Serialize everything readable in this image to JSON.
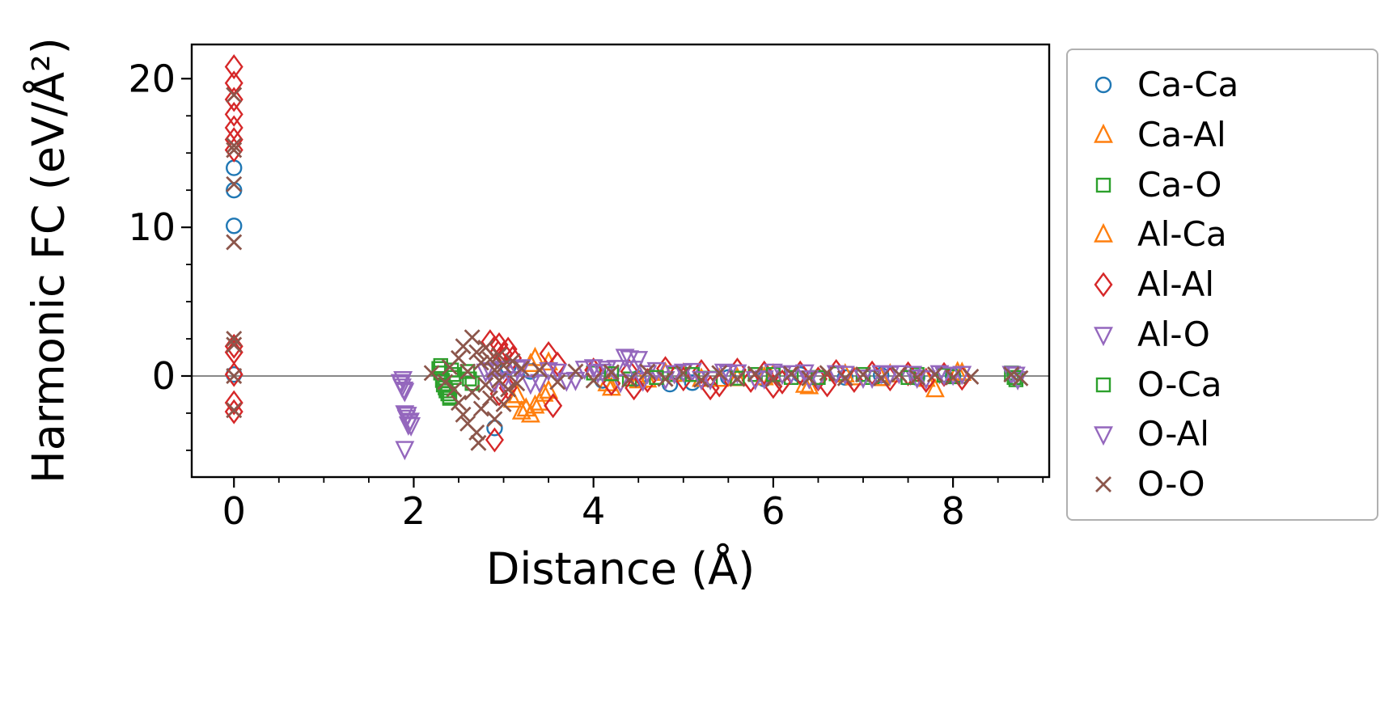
{
  "chart_data": {
    "type": "scatter",
    "title": "",
    "xlabel": "Distance (Å)",
    "ylabel": "Harmonic FC (eV/Å²)",
    "xlim": [
      -0.47,
      9.07
    ],
    "ylim": [
      -6.8,
      22.3
    ],
    "xticks": [
      0,
      2,
      4,
      6,
      8
    ],
    "yticks": [
      0,
      10,
      20
    ],
    "x_minor_step": 0.5,
    "y_minor_step": 2.5,
    "grid": false,
    "zero_line": {
      "y": 0,
      "color": "#888888"
    },
    "legend_position": "outside-right-top",
    "legend_border_color": "#b0b0b0",
    "series": [
      {
        "name": "Ca-Ca",
        "marker": "circle",
        "color": "#1f77b4",
        "size": 9,
        "points": [
          [
            0,
            14.0
          ],
          [
            0,
            12.5
          ],
          [
            0,
            10.1
          ],
          [
            0,
            0.1
          ],
          [
            2.9,
            -3.5
          ],
          [
            3.05,
            0.6
          ],
          [
            3.3,
            0.3
          ],
          [
            4.1,
            -0.3
          ],
          [
            4.5,
            -0.15
          ],
          [
            4.85,
            -0.55
          ],
          [
            5.1,
            -0.45
          ],
          [
            5.5,
            -0.1
          ],
          [
            5.9,
            -0.2
          ],
          [
            6.3,
            0.1
          ],
          [
            6.8,
            -0.1
          ],
          [
            7.2,
            0.05
          ],
          [
            7.6,
            -0.1
          ],
          [
            8.0,
            0.0
          ]
        ]
      },
      {
        "name": "Ca-Al",
        "marker": "triangle-up",
        "color": "#ff7f0e",
        "size": 10,
        "points": [
          [
            3.15,
            -1.3
          ],
          [
            3.25,
            -2.2
          ],
          [
            3.3,
            -2.6
          ],
          [
            3.4,
            -1.8
          ],
          [
            3.45,
            -1.2
          ],
          [
            3.35,
            1.2
          ],
          [
            3.5,
            0.9
          ],
          [
            4.2,
            -0.8
          ],
          [
            4.5,
            -0.3
          ],
          [
            4.8,
            0.2
          ],
          [
            5.2,
            -0.2
          ],
          [
            5.6,
            -0.15
          ],
          [
            6.0,
            0.1
          ],
          [
            6.4,
            -0.7
          ],
          [
            6.9,
            -0.1
          ],
          [
            7.3,
            0.1
          ],
          [
            7.7,
            -0.2
          ],
          [
            8.05,
            0.25
          ]
        ]
      },
      {
        "name": "Ca-O",
        "marker": "square",
        "color": "#2ca02c",
        "size": 8,
        "points": [
          [
            2.3,
            0.7
          ],
          [
            2.3,
            0.2
          ],
          [
            2.32,
            -0.3
          ],
          [
            2.35,
            -0.8
          ],
          [
            2.38,
            -1.2
          ],
          [
            2.4,
            -1.5
          ],
          [
            2.42,
            0.4
          ],
          [
            2.45,
            -0.1
          ],
          [
            2.6,
            0.3
          ],
          [
            2.65,
            -0.5
          ],
          [
            4.0,
            0.2
          ],
          [
            4.4,
            -0.2
          ],
          [
            4.9,
            0.1
          ],
          [
            5.3,
            -0.15
          ],
          [
            5.8,
            0.1
          ],
          [
            6.2,
            -0.1
          ],
          [
            6.7,
            0.15
          ],
          [
            7.1,
            -0.1
          ],
          [
            7.6,
            0.1
          ],
          [
            8.0,
            -0.05
          ],
          [
            8.65,
            0.2
          ],
          [
            8.7,
            -0.25
          ]
        ]
      },
      {
        "name": "Al-Ca",
        "marker": "triangle-up",
        "color": "#ff7f0e",
        "size": 10,
        "points": [
          [
            3.1,
            -1.6
          ],
          [
            3.2,
            -2.4
          ],
          [
            3.35,
            -2.0
          ],
          [
            3.5,
            -1.0
          ],
          [
            3.3,
            0.8
          ],
          [
            4.15,
            -0.5
          ],
          [
            4.6,
            -0.25
          ],
          [
            5.0,
            0.15
          ],
          [
            5.4,
            -0.2
          ],
          [
            5.9,
            -0.1
          ],
          [
            6.35,
            -0.6
          ],
          [
            6.8,
            0.1
          ],
          [
            7.2,
            -0.15
          ],
          [
            7.8,
            -0.9
          ],
          [
            8.1,
            0.2
          ]
        ]
      },
      {
        "name": "Al-Al",
        "marker": "diamond",
        "color": "#d62728",
        "size": 10,
        "points": [
          [
            0,
            20.8
          ],
          [
            0,
            19.7
          ],
          [
            0,
            18.6
          ],
          [
            0,
            17.6
          ],
          [
            0,
            16.7
          ],
          [
            0,
            15.9
          ],
          [
            0,
            15.2
          ],
          [
            0,
            2.0
          ],
          [
            0,
            1.6
          ],
          [
            0,
            0.1
          ],
          [
            0,
            -1.8
          ],
          [
            0,
            -2.4
          ],
          [
            2.85,
            2.3
          ],
          [
            2.9,
            1.9
          ],
          [
            2.95,
            2.1
          ],
          [
            3.0,
            1.5
          ],
          [
            3.05,
            1.8
          ],
          [
            3.1,
            1.2
          ],
          [
            2.9,
            -4.3
          ],
          [
            2.95,
            -1.2
          ],
          [
            3.05,
            -0.8
          ],
          [
            3.5,
            1.5
          ],
          [
            3.55,
            -2.0
          ],
          [
            3.6,
            0.8
          ],
          [
            4.0,
            0.4
          ],
          [
            4.2,
            -0.5
          ],
          [
            4.4,
            0.3
          ],
          [
            4.45,
            -0.8
          ],
          [
            4.6,
            -0.3
          ],
          [
            4.8,
            0.5
          ],
          [
            5.0,
            -0.2
          ],
          [
            5.2,
            0.3
          ],
          [
            5.3,
            -0.8
          ],
          [
            5.4,
            -0.6
          ],
          [
            5.6,
            0.4
          ],
          [
            5.75,
            -0.3
          ],
          [
            5.9,
            0.2
          ],
          [
            6.0,
            -0.7
          ],
          [
            6.1,
            -0.4
          ],
          [
            6.3,
            0.2
          ],
          [
            6.5,
            -0.2
          ],
          [
            6.6,
            -0.6
          ],
          [
            6.7,
            0.3
          ],
          [
            6.9,
            -0.3
          ],
          [
            7.1,
            0.2
          ],
          [
            7.3,
            -0.2
          ],
          [
            7.5,
            0.15
          ],
          [
            7.7,
            -0.3
          ],
          [
            7.9,
            0.1
          ],
          [
            8.1,
            -0.15
          ]
        ]
      },
      {
        "name": "Al-O",
        "marker": "triangle-down",
        "color": "#9467bd",
        "size": 10,
        "points": [
          [
            1.85,
            -0.4
          ],
          [
            1.87,
            -0.7
          ],
          [
            1.88,
            -0.2
          ],
          [
            1.9,
            -1.0
          ],
          [
            1.9,
            -2.5
          ],
          [
            1.92,
            -2.8
          ],
          [
            1.95,
            -3.1
          ],
          [
            1.97,
            -3.3
          ],
          [
            1.9,
            -4.9
          ],
          [
            2.8,
            0.3
          ],
          [
            2.9,
            -0.4
          ],
          [
            3.0,
            0.5
          ],
          [
            3.1,
            -0.2
          ],
          [
            3.2,
            0.6
          ],
          [
            3.3,
            -0.5
          ],
          [
            3.5,
            0.4
          ],
          [
            3.7,
            -0.3
          ],
          [
            3.9,
            0.5
          ],
          [
            4.0,
            0.6
          ],
          [
            4.1,
            0.3
          ],
          [
            4.15,
            0.5
          ],
          [
            4.25,
            0.55
          ],
          [
            4.35,
            1.3
          ],
          [
            4.45,
            0.5
          ],
          [
            4.5,
            1.15
          ],
          [
            4.3,
            -0.4
          ],
          [
            4.6,
            0.2
          ],
          [
            4.7,
            0.4
          ],
          [
            4.8,
            -0.2
          ],
          [
            5.0,
            0.3
          ],
          [
            5.1,
            0.35
          ],
          [
            5.3,
            -0.2
          ],
          [
            5.45,
            0.3
          ],
          [
            5.6,
            0.25
          ],
          [
            5.9,
            -0.15
          ],
          [
            6.0,
            0.3
          ],
          [
            6.2,
            0.2
          ],
          [
            6.35,
            0.25
          ],
          [
            6.5,
            -0.2
          ],
          [
            6.8,
            0.15
          ],
          [
            7.1,
            -0.1
          ],
          [
            7.2,
            0.2
          ],
          [
            7.4,
            0.2
          ],
          [
            7.55,
            0.15
          ],
          [
            7.7,
            -0.15
          ],
          [
            7.85,
            0.2
          ],
          [
            8.0,
            0.1
          ],
          [
            8.1,
            0.15
          ],
          [
            8.65,
            0.15
          ],
          [
            8.72,
            -0.2
          ]
        ]
      },
      {
        "name": "O-Ca",
        "marker": "square",
        "color": "#2ca02c",
        "size": 8,
        "points": [
          [
            2.28,
            0.5
          ],
          [
            2.33,
            -0.6
          ],
          [
            2.36,
            -1.0
          ],
          [
            2.4,
            -1.4
          ],
          [
            2.44,
            0.1
          ],
          [
            2.62,
            -0.2
          ],
          [
            4.2,
            0.15
          ],
          [
            4.7,
            -0.1
          ],
          [
            5.1,
            0.1
          ],
          [
            5.6,
            -0.15
          ],
          [
            6.0,
            0.1
          ],
          [
            6.5,
            -0.1
          ],
          [
            7.0,
            0.1
          ],
          [
            7.5,
            -0.1
          ],
          [
            7.9,
            0.05
          ],
          [
            8.68,
            -0.1
          ]
        ]
      },
      {
        "name": "O-Al",
        "marker": "triangle-down",
        "color": "#9467bd",
        "size": 10,
        "points": [
          [
            1.86,
            -0.5
          ],
          [
            1.89,
            -0.9
          ],
          [
            1.93,
            -2.6
          ],
          [
            1.96,
            -3.0
          ],
          [
            1.94,
            -3.25
          ],
          [
            2.85,
            0.4
          ],
          [
            3.0,
            -0.3
          ],
          [
            3.15,
            0.5
          ],
          [
            3.4,
            -0.4
          ],
          [
            3.6,
            0.3
          ],
          [
            3.8,
            -0.25
          ],
          [
            4.05,
            0.25
          ],
          [
            4.4,
            1.2
          ],
          [
            4.55,
            -0.3
          ],
          [
            4.9,
            0.2
          ],
          [
            5.2,
            -0.2
          ],
          [
            5.5,
            0.2
          ],
          [
            5.8,
            -0.2
          ],
          [
            6.1,
            0.15
          ],
          [
            6.4,
            -0.15
          ],
          [
            6.7,
            0.2
          ],
          [
            7.0,
            -0.1
          ],
          [
            7.3,
            0.15
          ],
          [
            7.6,
            -0.1
          ],
          [
            7.9,
            0.1
          ],
          [
            8.7,
            0.1
          ]
        ]
      },
      {
        "name": "O-O",
        "marker": "x",
        "color": "#8c564b",
        "size": 9,
        "points": [
          [
            0,
            18.9
          ],
          [
            0,
            15.5
          ],
          [
            0,
            15.2
          ],
          [
            0,
            12.9
          ],
          [
            0,
            9.0
          ],
          [
            0,
            2.5
          ],
          [
            0,
            2.1
          ],
          [
            0,
            0.0
          ],
          [
            0,
            -2.3
          ],
          [
            2.2,
            0.2
          ],
          [
            2.35,
            -0.4
          ],
          [
            2.4,
            0.6
          ],
          [
            2.45,
            -0.9
          ],
          [
            2.5,
            1.2
          ],
          [
            2.5,
            -1.8
          ],
          [
            2.55,
            2.0
          ],
          [
            2.55,
            -2.6
          ],
          [
            2.6,
            0.3
          ],
          [
            2.6,
            -3.2
          ],
          [
            2.65,
            2.6
          ],
          [
            2.65,
            -1.1
          ],
          [
            2.7,
            1.6
          ],
          [
            2.7,
            -3.8
          ],
          [
            2.72,
            -4.5
          ],
          [
            2.75,
            0.9
          ],
          [
            2.75,
            -2.2
          ],
          [
            2.8,
            1.9
          ],
          [
            2.8,
            -0.6
          ],
          [
            2.85,
            1.1
          ],
          [
            2.85,
            -1.5
          ],
          [
            2.9,
            0.4
          ],
          [
            2.9,
            -2.9
          ],
          [
            2.95,
            1.4
          ],
          [
            2.95,
            -0.3
          ],
          [
            3.0,
            0.7
          ],
          [
            3.0,
            -1.9
          ],
          [
            3.05,
            -0.9
          ],
          [
            3.1,
            1.0
          ],
          [
            3.15,
            -0.5
          ],
          [
            3.2,
            0.5
          ],
          [
            3.4,
            0.4
          ],
          [
            3.6,
            -0.4
          ],
          [
            3.8,
            0.3
          ],
          [
            4.0,
            -0.3
          ],
          [
            4.2,
            0.25
          ],
          [
            4.4,
            -0.25
          ],
          [
            4.6,
            0.3
          ],
          [
            4.8,
            -0.2
          ],
          [
            5.0,
            0.2
          ],
          [
            5.2,
            -0.25
          ],
          [
            5.4,
            0.2
          ],
          [
            5.6,
            -0.2
          ],
          [
            5.8,
            0.15
          ],
          [
            6.0,
            -0.2
          ],
          [
            6.2,
            0.15
          ],
          [
            6.4,
            -0.15
          ],
          [
            6.6,
            0.2
          ],
          [
            6.8,
            -0.15
          ],
          [
            7.0,
            0.1
          ],
          [
            7.2,
            -0.15
          ],
          [
            7.4,
            0.1
          ],
          [
            7.6,
            -0.1
          ],
          [
            7.8,
            0.1
          ],
          [
            8.0,
            -0.1
          ],
          [
            8.2,
            -0.05
          ],
          [
            8.65,
            0.1
          ],
          [
            8.75,
            -0.15
          ]
        ]
      }
    ]
  }
}
